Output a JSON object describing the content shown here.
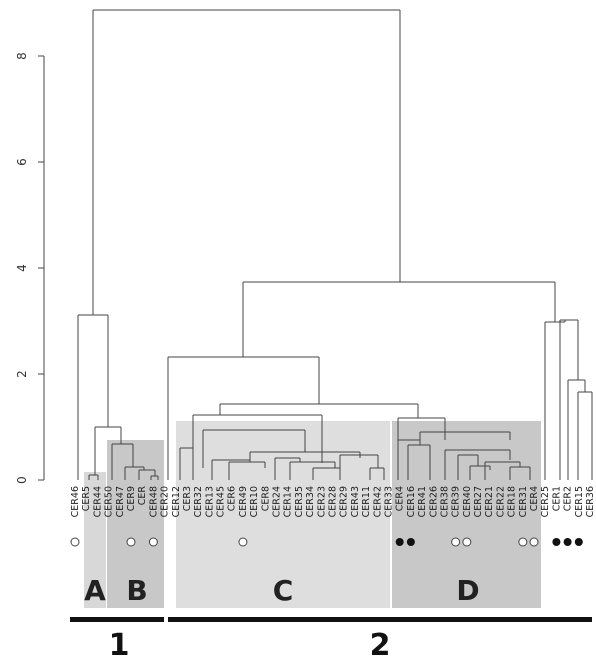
{
  "axis": {
    "ticks": [
      "0",
      "2",
      "4",
      "6",
      "8"
    ]
  },
  "leaves": [
    "CER46",
    "CER5",
    "CER44",
    "CER50",
    "CER47",
    "CER9",
    "CER",
    "CER48",
    "CER20",
    "CER12",
    "CER3",
    "CER32",
    "CER13",
    "CER45",
    "CER6",
    "CER49",
    "CER10",
    "CER8",
    "CER24",
    "CER14",
    "CER35",
    "CER34",
    "CER23",
    "CER28",
    "CER29",
    "CER43",
    "CER11",
    "CER42",
    "CER33",
    "CER4",
    "CER16",
    "CER41",
    "CER26",
    "CER38",
    "CER39",
    "CER40",
    "CER27",
    "CER21",
    "CER22",
    "CER18",
    "CER31",
    "CER4",
    "CER25",
    "CER1",
    "CER2",
    "CER15",
    "CER36"
  ],
  "markers": {
    "open": [
      0,
      5,
      7,
      15,
      34,
      35,
      40,
      41
    ],
    "filled": [
      29,
      30,
      43,
      44,
      45
    ]
  },
  "clusters": [
    {
      "letter": "A"
    },
    {
      "letter": "B"
    },
    {
      "letter": "C"
    },
    {
      "letter": "D"
    }
  ],
  "groups": [
    {
      "label": "1"
    },
    {
      "label": "2"
    }
  ],
  "colors": {
    "shade_light": "#dcdcdc",
    "shade_dark": "#c6c6c6",
    "lines": "#444444",
    "bars": "#111111"
  }
}
